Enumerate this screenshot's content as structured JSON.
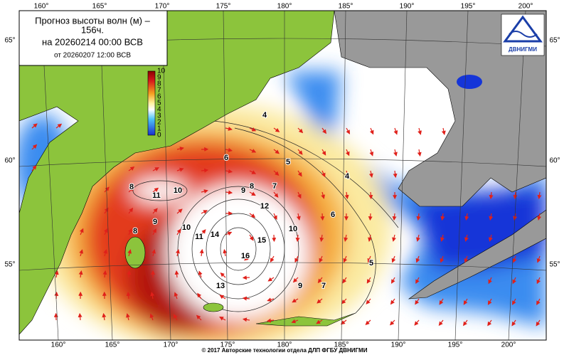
{
  "header": {
    "title_line1": "Прогноз высоты волн (м) –",
    "title_line2": "156ч.",
    "valid": "на 20260214 00:00 ВСВ",
    "issued": "от 20260207 12:00 ВСВ"
  },
  "logo": {
    "text": "ДВНИГМИ"
  },
  "longitudes": [
    "160°",
    "165°",
    "170°",
    "175°",
    "180°",
    "185°",
    "190°",
    "195°",
    "200°"
  ],
  "latitudes": [
    "65°",
    "60°",
    "55°"
  ],
  "colorbar": {
    "ticks": [
      10,
      9,
      8,
      7,
      6,
      5,
      4,
      3,
      2,
      1,
      0
    ]
  },
  "contours": {
    "labels": [
      4,
      4,
      5,
      5,
      6,
      6,
      7,
      7,
      8,
      8,
      8,
      9,
      9,
      9,
      10,
      10,
      10,
      11,
      11,
      12,
      13,
      14,
      15,
      16
    ]
  },
  "footer": "© 2017 Авторские технологии отдела ДЛП ФГБУ ДВНИГМИ"
}
